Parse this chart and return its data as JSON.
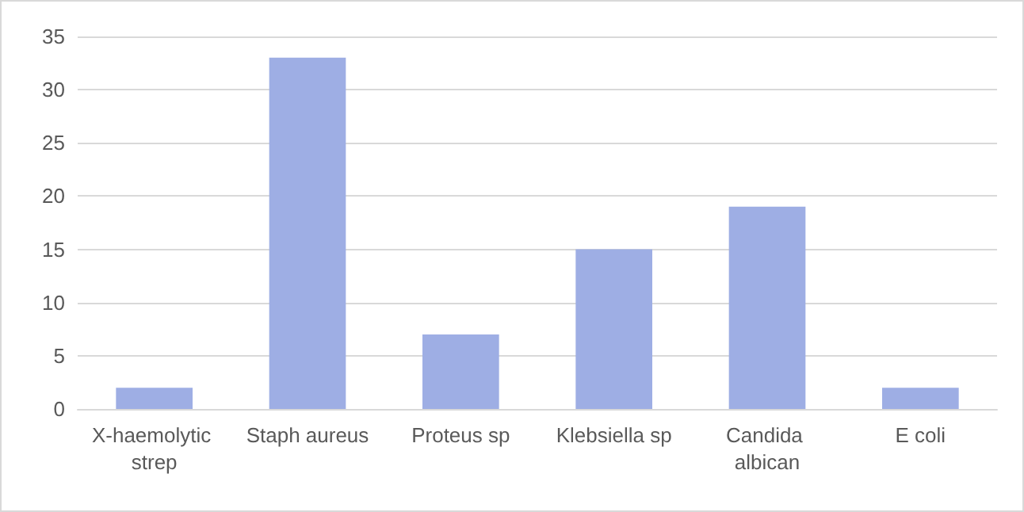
{
  "chart_data": {
    "type": "bar",
    "categories": [
      "X-haemolytic strep",
      "Staph aureus",
      "Proteus sp",
      "Klebsiella sp",
      "Candida albican",
      "E coli"
    ],
    "values": [
      2,
      33,
      7,
      15,
      19,
      2
    ],
    "color": "#9eaee4",
    "ylim": [
      0,
      35
    ],
    "yticks": [
      0,
      5,
      10,
      15,
      20,
      25,
      30,
      35
    ],
    "grid": "y"
  }
}
